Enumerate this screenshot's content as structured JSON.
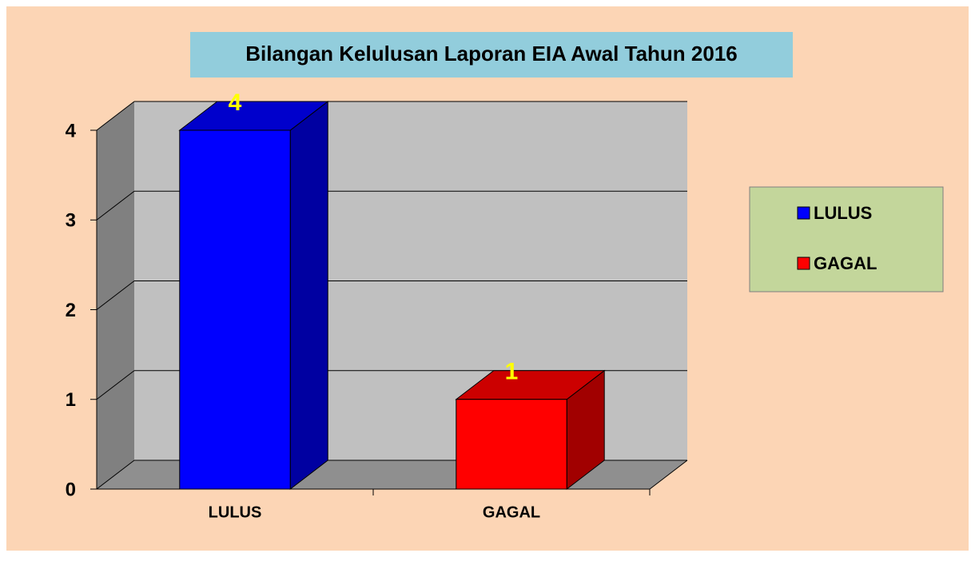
{
  "chart_data": {
    "type": "bar",
    "title": "Bilangan Kelulusan Laporan EIA Awal Tahun 2016",
    "categories": [
      "LULUS",
      "GAGAL"
    ],
    "values": [
      4,
      1
    ],
    "colors": [
      "#0000ff",
      "#ff0000"
    ],
    "ylim": [
      0,
      4
    ],
    "yticks": [
      0,
      1,
      2,
      3,
      4
    ],
    "grid": true,
    "legend": "right"
  }
}
